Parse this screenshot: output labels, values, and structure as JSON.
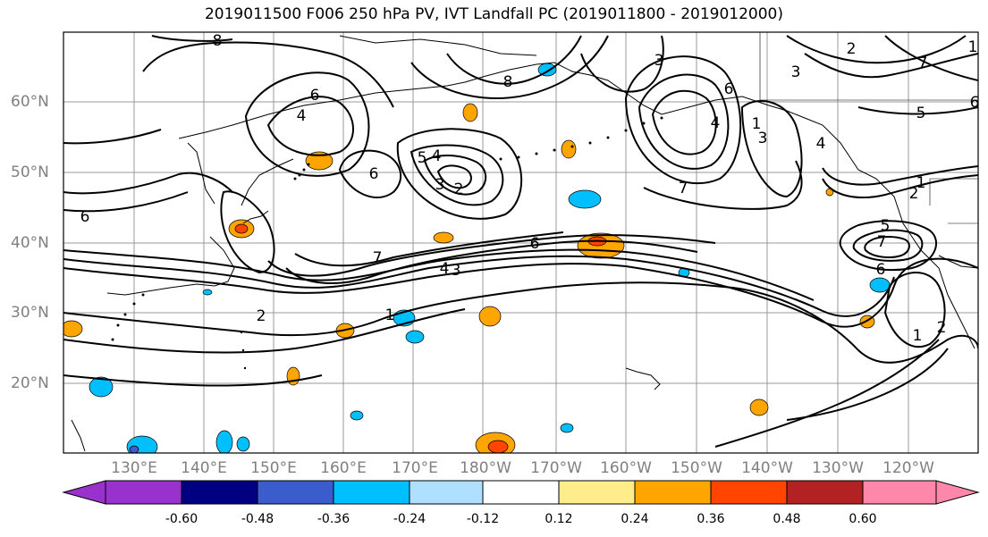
{
  "title": "2019011500 F006 250 hPa PV, IVT Landfall PC (2019011800 - 2019012000)",
  "lat_labels": [
    "60°N",
    "50°N",
    "40°N",
    "30°N",
    "20°N"
  ],
  "lon_labels": [
    "130°E",
    "140°E",
    "150°E",
    "160°E",
    "170°E",
    "180°W",
    "170°W",
    "160°W",
    "150°W",
    "140°W",
    "130°W",
    "120°W"
  ],
  "contour_labels": [
    "8",
    "6",
    "4",
    "6",
    "6",
    "5",
    "4",
    "3",
    "2",
    "8",
    "3",
    "7",
    "6",
    "4",
    "7",
    "4",
    "3",
    "1",
    "2",
    "3",
    "7",
    "6",
    "5",
    "4",
    "2",
    "1",
    "3",
    "6",
    "1",
    "1",
    "2",
    "5",
    "7",
    "6",
    "1",
    "2"
  ],
  "colorbar": {
    "ticks": [
      "-0.60",
      "-0.48",
      "-0.36",
      "-0.24",
      "-0.12",
      "0.12",
      "0.24",
      "0.36",
      "0.48",
      "0.60"
    ],
    "colors": [
      "#9932cc",
      "#000080",
      "#3a5ccc",
      "#00bfff",
      "#b0e0ff",
      "#ffffff",
      "#ffec8b",
      "#ffa500",
      "#ff4500",
      "#b22222",
      "#ff88aa"
    ]
  }
}
